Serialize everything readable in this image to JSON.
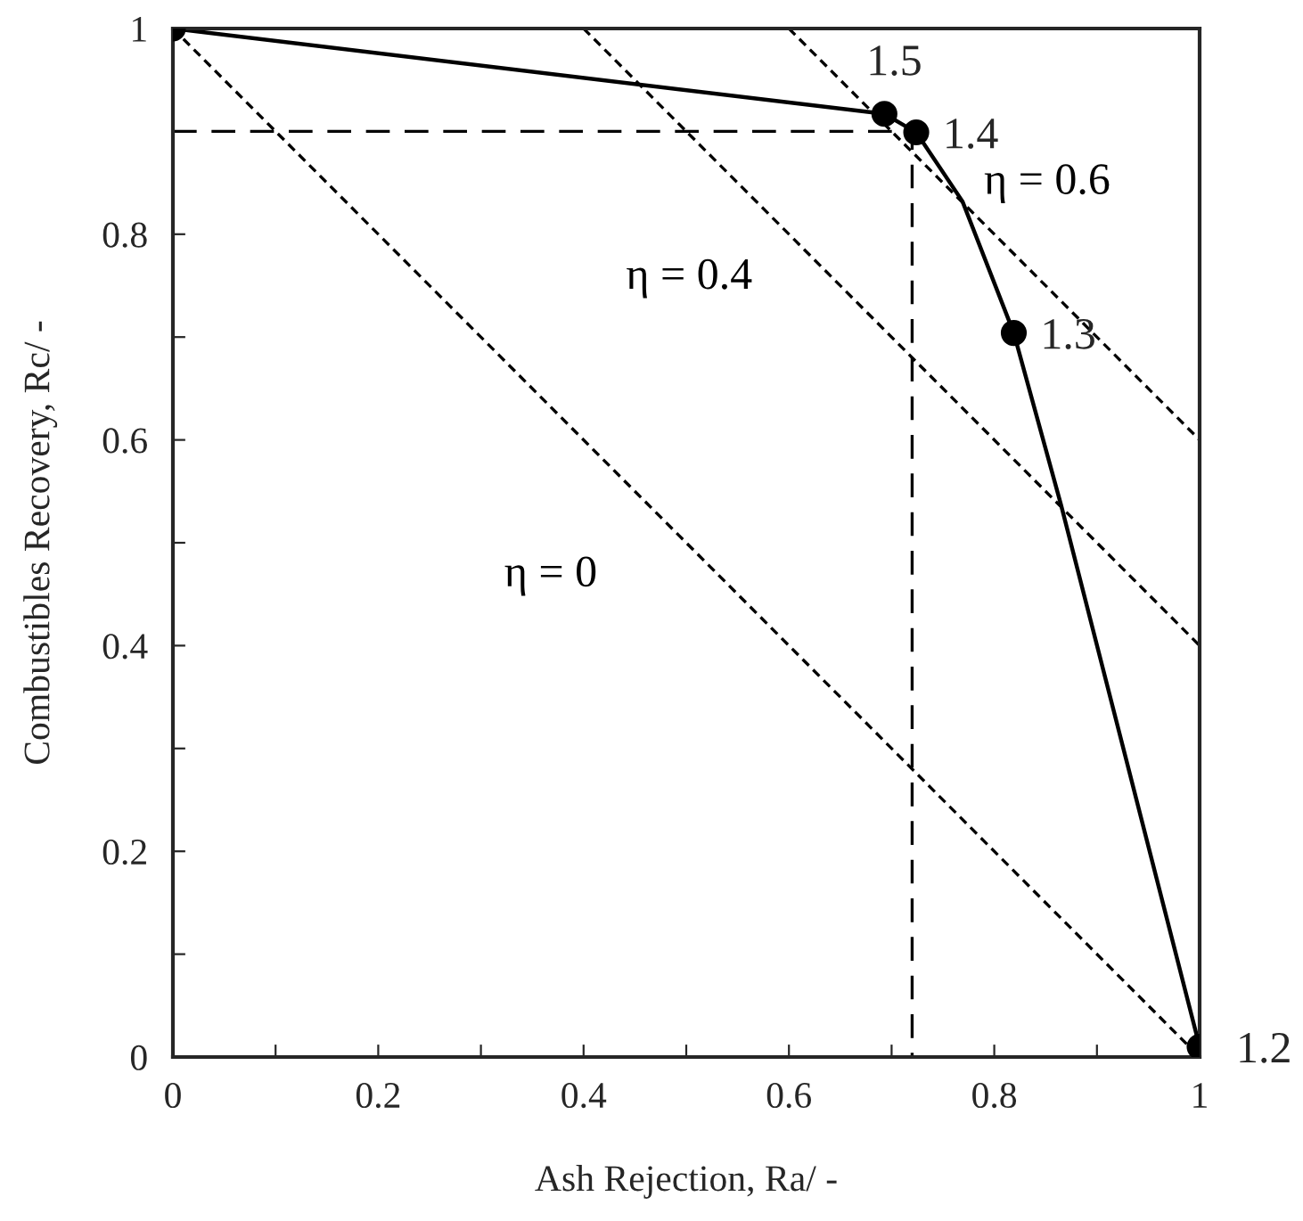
{
  "chart_data": {
    "type": "line",
    "xlabel": "Ash Rejection, Ra/ -",
    "ylabel": "Combustibles Recovery, Rc/ -",
    "xlim": [
      0,
      1
    ],
    "ylim": [
      0,
      1
    ],
    "xticks": [
      0,
      {
        "value": 0.1,
        "label": null
      },
      0.2,
      {
        "value": 0.3,
        "label": null
      },
      0.4,
      {
        "value": 0.5,
        "label": null
      },
      0.6,
      {
        "value": 0.7,
        "label": null
      },
      0.8,
      {
        "value": 0.9,
        "label": null
      },
      1
    ],
    "yticks": [
      0,
      {
        "value": 0.1,
        "label": null
      },
      0.2,
      {
        "value": 0.3,
        "label": null
      },
      0.4,
      {
        "value": 0.5,
        "label": null
      },
      0.6,
      {
        "value": 0.7,
        "label": null
      },
      0.8,
      {
        "value": 0.9,
        "label": null
      },
      1
    ],
    "grid": false,
    "legend": false,
    "series": [
      {
        "color": "#000000",
        "line_style": "solid",
        "marker": "none",
        "x": [
          0,
          0.693,
          0.724,
          0.769,
          0.819,
          0.865,
          1.0
        ],
        "values": [
          1,
          0.917,
          0.899,
          0.832,
          0.704,
          0.537,
          0.01
        ]
      },
      {
        "type": "scatter",
        "color": "#000000",
        "marker": "circle",
        "x": [
          0,
          0.693,
          0.724,
          0.819,
          1.0
        ],
        "values": [
          1,
          0.917,
          0.899,
          0.704,
          0.01
        ]
      },
      {
        "name": "η = 0",
        "color": "#000000",
        "line_style": "dotted",
        "marker": "none",
        "x": [
          0,
          1
        ],
        "values": [
          1,
          0
        ]
      },
      {
        "name": "η = 0.4",
        "color": "#000000",
        "line_style": "dotted",
        "marker": "none",
        "x": [
          0.4,
          1
        ],
        "values": [
          1,
          0.4
        ]
      },
      {
        "name": "η = 0.6",
        "color": "#000000",
        "line_style": "dotted",
        "marker": "none",
        "x": [
          0.6,
          1
        ],
        "values": [
          1,
          0.6
        ]
      },
      {
        "color": "#000000",
        "line_style": "dashed",
        "marker": "none",
        "x": [
          0,
          0.72,
          0.72
        ],
        "values": [
          0.9,
          0.9,
          0
        ]
      }
    ],
    "annotations": [
      {
        "text": "1.5",
        "x": 0.693,
        "y": 0.917
      },
      {
        "text": "1.4",
        "x": 0.724,
        "y": 0.899
      },
      {
        "text": "1.3",
        "x": 0.819,
        "y": 0.704
      },
      {
        "text": "1.2",
        "x": 1.0,
        "y": 0.01
      }
    ]
  }
}
